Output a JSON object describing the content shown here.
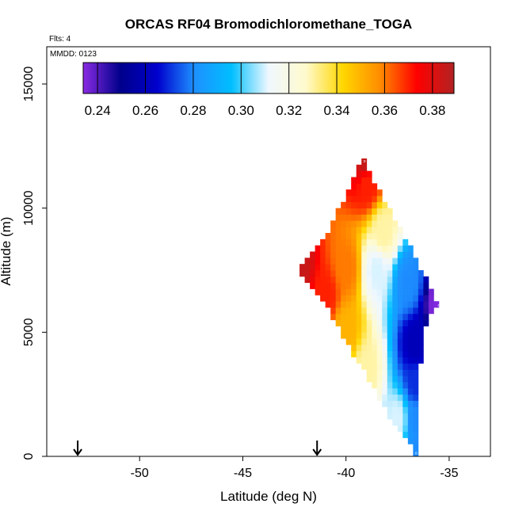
{
  "chart_data": {
    "type": "heatmap",
    "title": "ORCAS RF04 Bromodichloromethane_TOGA",
    "flights_label": "Flts: 4",
    "mmdd_label": "MMDD: 0123",
    "xlabel": "Latitude (deg N)",
    "ylabel": "Altitude (m)",
    "xlim": [
      -54.5,
      -33
    ],
    "ylim": [
      0,
      16500
    ],
    "x_ticks": [
      -50,
      -45,
      -40,
      -35
    ],
    "x_tick_labels": [
      "-50",
      "-45",
      "-40",
      "-35"
    ],
    "y_ticks": [
      0,
      5000,
      10000,
      15000
    ],
    "y_tick_labels": [
      "0",
      "5000",
      "10000",
      "15000"
    ],
    "colorbar": {
      "min": 0.234,
      "max": 0.389,
      "ticks": [
        0.24,
        0.26,
        0.28,
        0.3,
        0.32,
        0.34,
        0.36,
        0.38
      ],
      "tick_labels": [
        "0.24",
        "0.26",
        "0.28",
        "0.30",
        "0.32",
        "0.34",
        "0.36",
        "0.38"
      ],
      "colors": [
        "#8a2be2",
        "#00008b",
        "#0000cd",
        "#1e90ff",
        "#00bfff",
        "#f0f8ff",
        "#fffacd",
        "#ffd700",
        "#ff8c00",
        "#ff0000",
        "#b22222"
      ]
    },
    "arrows_latitude": [
      -53,
      -41.4
    ],
    "flight_track": [
      {
        "lat": -36.6,
        "alt": 0,
        "value": 0.28
      },
      {
        "lat": -36.6,
        "alt": 1500,
        "value": 0.28
      },
      {
        "lat": -36.6,
        "alt": 3000,
        "value": 0.27
      },
      {
        "lat": -36.6,
        "alt": 4500,
        "value": 0.26
      },
      {
        "lat": -35.5,
        "alt": 6100,
        "value": 0.235
      },
      {
        "lat": -37.0,
        "alt": 7000,
        "value": 0.28
      },
      {
        "lat": -38.5,
        "alt": 7500,
        "value": 0.31
      },
      {
        "lat": -40.0,
        "alt": 7600,
        "value": 0.36
      },
      {
        "lat": -42.3,
        "alt": 7600,
        "value": 0.385
      },
      {
        "lat": -41.0,
        "alt": 6500,
        "value": 0.37
      },
      {
        "lat": -40.0,
        "alt": 5000,
        "value": 0.35
      },
      {
        "lat": -39.0,
        "alt": 3500,
        "value": 0.33
      },
      {
        "lat": -37.5,
        "alt": 1500,
        "value": 0.31
      },
      {
        "lat": -38.2,
        "alt": 9000,
        "value": 0.33
      },
      {
        "lat": -39.0,
        "alt": 11000,
        "value": 0.37
      },
      {
        "lat": -39.1,
        "alt": 11900,
        "value": 0.385
      }
    ],
    "point_labels": [
      {
        "lat": -42.3,
        "alt": 7600,
        "text": "o"
      },
      {
        "lat": -35.5,
        "alt": 6100,
        "text": "o"
      },
      {
        "lat": -39.1,
        "alt": 11900,
        "text": "o"
      },
      {
        "lat": -36.6,
        "alt": 150,
        "text": "o"
      }
    ]
  }
}
